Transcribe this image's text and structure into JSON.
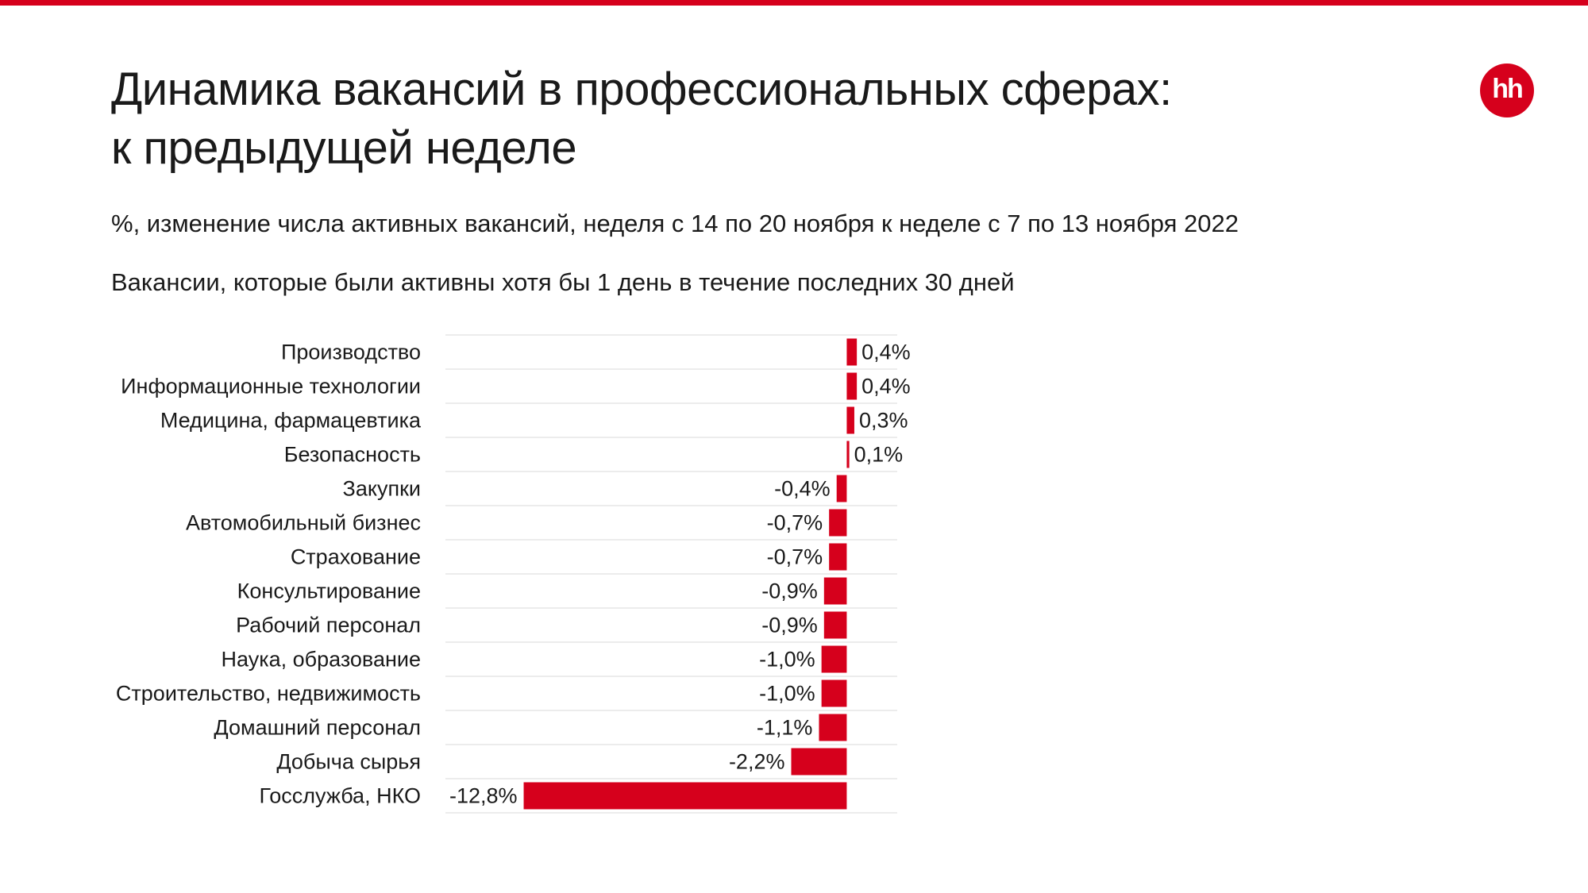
{
  "header": {
    "title_line1": "Динамика вакансий в профессиональных сферах:",
    "title_line2": "к предыдущей неделе",
    "subtitle": "%, изменение числа активных вакансий, неделя с 14 по 20 ноября к неделе с 7 по 13 ноября 2022",
    "note": "Вакансии, которые были активны хотя бы 1 день в течение последних 30 дней"
  },
  "logo": {
    "text": "hh",
    "color": "#d6001c"
  },
  "colors": {
    "accent": "#d6001c",
    "bar": "#d6001c",
    "grid": "#e6e6e6"
  },
  "chart_data": {
    "type": "bar",
    "orientation": "horizontal",
    "categories": [
      "Производство",
      "Информационные технологии",
      "Медицина, фармацевтика",
      "Безопасность",
      "Закупки",
      "Автомобильный бизнес",
      "Страхование",
      "Консультирование",
      "Рабочий персонал",
      "Наука, образование",
      "Строительство, недвижимость",
      "Домашний персонал",
      "Добыча сырья",
      "Госслужба, НКО"
    ],
    "values": [
      0.4,
      0.4,
      0.3,
      0.1,
      -0.4,
      -0.7,
      -0.7,
      -0.9,
      -0.9,
      -1.0,
      -1.0,
      -1.1,
      -2.2,
      -12.8
    ],
    "value_labels": [
      "0,4%",
      "0,4%",
      "0,3%",
      "0,1%",
      "-0,4%",
      "-0,7%",
      "-0,7%",
      "-0,9%",
      "-0,9%",
      "-1,0%",
      "-1,0%",
      "-1,1%",
      "-2,2%",
      "-12,8%"
    ],
    "xlim": [
      -15.9,
      2.0
    ],
    "grid": true,
    "legend": "none"
  }
}
